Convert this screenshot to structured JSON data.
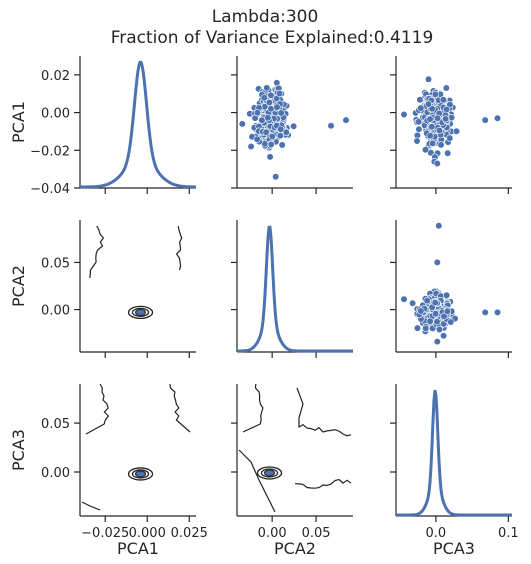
{
  "title_line1": "Lambda:300",
  "title_line2": "Fraction of Variance Explained:0.4119",
  "colors": {
    "series": "#4c72b0",
    "contour": "#222222",
    "axis": "#262626",
    "point_edge": "#ffffff"
  },
  "chart_data": {
    "type": "scatter",
    "subtype": "pairplot",
    "variables": [
      "PCA1",
      "PCA2",
      "PCA3"
    ],
    "grid": false,
    "axes": {
      "PCA1": {
        "range": [
          -0.04,
          0.03
        ],
        "ticks": [
          -0.04,
          -0.02,
          0.0,
          0.02
        ],
        "tick_labels": [
          "−0.04",
          "−0.02",
          "0.00",
          "0.02"
        ]
      },
      "PCA2": {
        "range": [
          -0.045,
          0.095
        ],
        "ticks": [
          0.0,
          0.05
        ],
        "tick_labels": [
          "0.00",
          "0.05"
        ]
      },
      "PCA3": {
        "range": [
          -0.045,
          0.09
        ],
        "ticks": [
          0.0,
          0.05
        ],
        "tick_labels": [
          "0.00",
          "0.05"
        ]
      }
    },
    "x_axes": {
      "PCA1": {
        "range": [
          -0.04,
          0.029
        ],
        "ticks": [
          -0.025,
          0.0,
          0.025
        ],
        "tick_labels": [
          "−0.025",
          "0.000",
          "0.025"
        ]
      },
      "PCA2": {
        "range": [
          -0.04,
          0.092
        ],
        "ticks": [
          0.0,
          0.05
        ],
        "tick_labels": [
          "0.00",
          "0.05"
        ]
      },
      "PCA3": {
        "range": [
          -0.055,
          0.105
        ],
        "ticks": [
          0.0,
          0.1
        ],
        "tick_labels": [
          "0.0",
          "0.1"
        ]
      }
    },
    "diagonal": {
      "type": "kde",
      "PCA1": {
        "peak_at": -0.004,
        "width": 0.0035
      },
      "PCA2": {
        "peak_at": -0.003,
        "width": 0.0035
      },
      "PCA3": {
        "peak_at": -0.001,
        "width": 0.0035
      }
    },
    "scatter": {
      "PCA1_vs_PCA2": {
        "x": "PCA2",
        "y": "PCA1",
        "cluster_center": [
          -0.002,
          -0.003
        ],
        "outliers": [
          [
            -0.034,
            -0.006
          ],
          [
            0.067,
            -0.007
          ],
          [
            0.084,
            -0.004
          ],
          [
            -0.024,
            -0.018
          ],
          [
            0.004,
            -0.034
          ]
        ]
      },
      "PCA1_vs_PCA3": {
        "x": "PCA3",
        "y": "PCA1",
        "cluster_center": [
          -0.001,
          -0.003
        ],
        "outliers": [
          [
            -0.044,
            -0.001
          ],
          [
            0.068,
            -0.004
          ],
          [
            0.085,
            -0.003
          ],
          [
            -0.002,
            -0.026
          ],
          [
            0.002,
            -0.027
          ]
        ]
      },
      "PCA2_vs_PCA3": {
        "x": "PCA3",
        "y": "PCA2",
        "cluster_center": [
          -0.001,
          -0.003
        ],
        "outliers": [
          [
            -0.044,
            0.011
          ],
          [
            0.068,
            -0.003
          ],
          [
            0.085,
            -0.003
          ],
          [
            0.004,
            0.089
          ],
          [
            0.002,
            0.05
          ],
          [
            0.002,
            -0.034
          ]
        ]
      }
    },
    "kde_lower": {
      "PCA2_vs_PCA1": {
        "center": [
          -0.004,
          -0.003
        ]
      },
      "PCA3_vs_PCA1": {
        "center": [
          -0.004,
          -0.002
        ]
      },
      "PCA3_vs_PCA2": {
        "center": [
          -0.003,
          -0.001
        ]
      }
    }
  }
}
